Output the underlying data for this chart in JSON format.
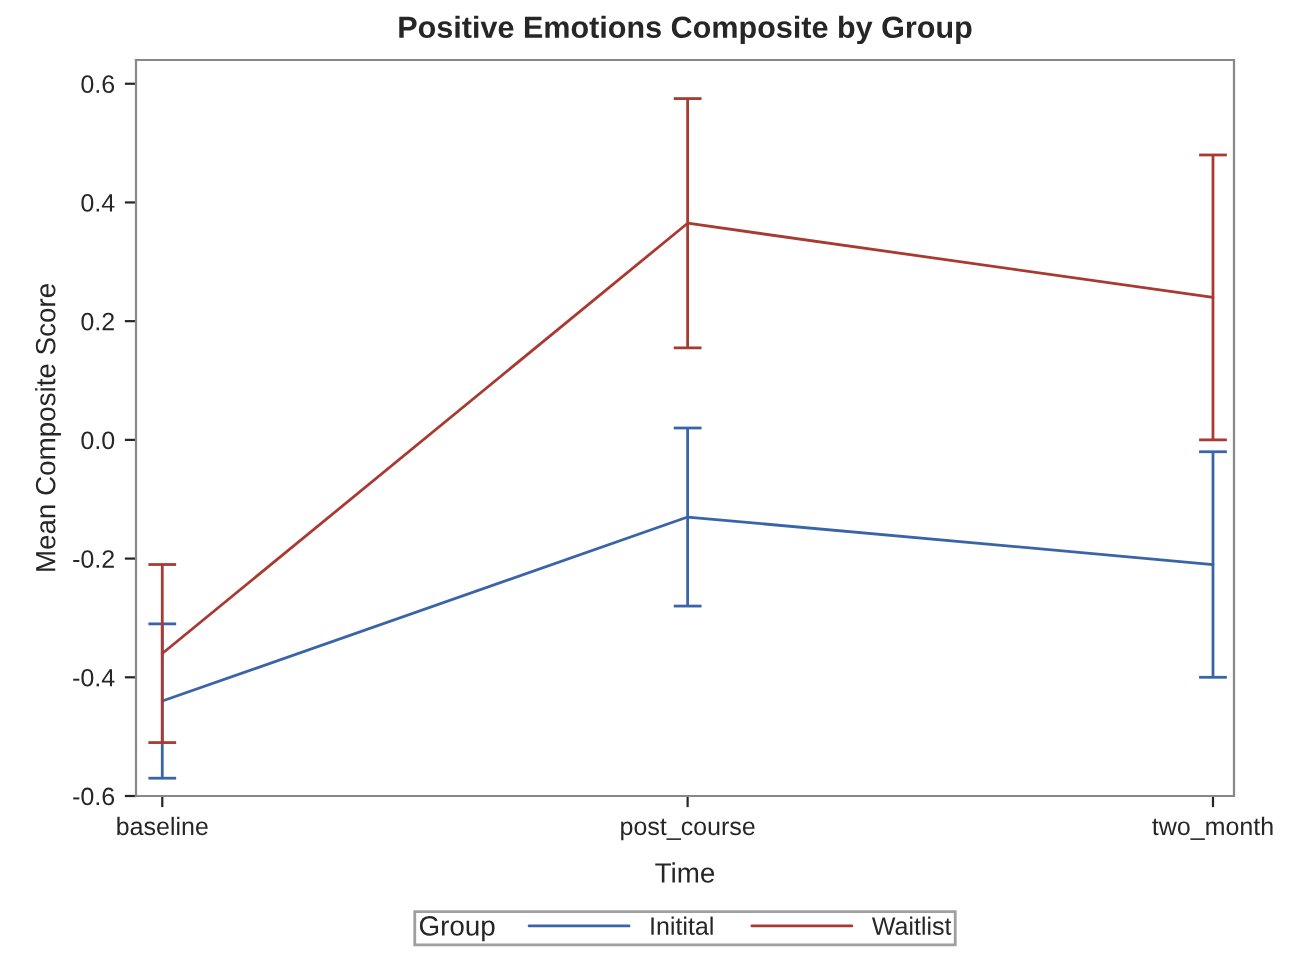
{
  "chart_data": {
    "type": "line",
    "title": "Positive Emotions Composite by Group",
    "xlabel": "Time",
    "ylabel": "Mean Composite Score",
    "legend_title": "Group",
    "categories": [
      "baseline",
      "post_course",
      "two_month"
    ],
    "series": [
      {
        "name": "Initital",
        "color": "#3a64a8",
        "values": [
          -0.44,
          -0.13,
          -0.21
        ],
        "errors": [
          [
            -0.57,
            -0.31
          ],
          [
            -0.28,
            0.02
          ],
          [
            -0.4,
            -0.02
          ]
        ]
      },
      {
        "name": "Waitlist",
        "color": "#a83a32",
        "values": [
          -0.36,
          0.365,
          0.24
        ],
        "errors": [
          [
            -0.51,
            -0.21
          ],
          [
            0.155,
            0.575
          ],
          [
            0.0,
            0.48
          ]
        ]
      }
    ],
    "ylim": [
      -0.6,
      0.64
    ],
    "yticks": [
      {
        "value": -0.6,
        "label": "-0.6"
      },
      {
        "value": -0.4,
        "label": "-0.4"
      },
      {
        "value": -0.2,
        "label": "-0.2"
      },
      {
        "value": 0.0,
        "label": "0.0"
      },
      {
        "value": 0.2,
        "label": "0.2"
      },
      {
        "value": 0.4,
        "label": "0.4"
      },
      {
        "value": 0.6,
        "label": "0.6"
      }
    ],
    "grid": false,
    "legend": "bottom",
    "marker": "none",
    "line_style": "solid"
  }
}
